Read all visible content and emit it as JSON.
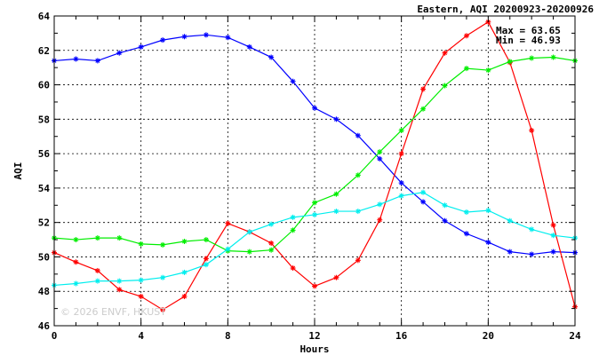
{
  "chart_data": {
    "type": "line",
    "title": "Eastern, AQI 20200923-20200926",
    "xlabel": "Hours",
    "ylabel": "AQI",
    "xlim": [
      0,
      24
    ],
    "ylim": [
      46,
      64
    ],
    "x_ticks": [
      0,
      4,
      8,
      12,
      16,
      20,
      24
    ],
    "y_ticks": [
      46,
      48,
      50,
      52,
      54,
      56,
      58,
      60,
      62,
      64
    ],
    "grid": true,
    "stats": {
      "max_label": "Max = 63.65",
      "min_label": "Min = 46.93"
    },
    "watermark": "© 2026 ENVF, HKUST",
    "x": [
      0,
      1,
      2,
      3,
      4,
      5,
      6,
      7,
      8,
      9,
      10,
      11,
      12,
      13,
      14,
      15,
      16,
      17,
      18,
      19,
      20,
      21,
      22,
      23,
      24
    ],
    "series": [
      {
        "color": "#0000ff",
        "values": [
          61.4,
          61.5,
          61.4,
          61.85,
          62.2,
          62.6,
          62.8,
          62.9,
          62.75,
          62.2,
          61.6,
          60.2,
          58.65,
          58.0,
          57.05,
          55.7,
          54.3,
          53.2,
          52.1,
          51.35,
          50.85,
          50.3,
          50.15,
          50.3,
          50.25
        ]
      },
      {
        "color": "#ff0000",
        "values": [
          50.25,
          49.7,
          49.2,
          48.1,
          47.7,
          46.93,
          47.7,
          49.9,
          51.95,
          51.45,
          50.8,
          49.35,
          48.3,
          48.8,
          49.8,
          52.15,
          56.0,
          59.75,
          61.85,
          62.85,
          63.65,
          61.3,
          57.35,
          51.85,
          47.1
        ]
      },
      {
        "color": "#00ee00",
        "values": [
          51.1,
          51.0,
          51.1,
          51.1,
          50.75,
          50.7,
          50.9,
          51.0,
          50.35,
          50.3,
          50.4,
          51.55,
          53.15,
          53.65,
          54.75,
          56.1,
          57.35,
          58.6,
          59.95,
          60.95,
          60.85,
          61.35,
          61.55,
          61.6,
          61.4
        ]
      },
      {
        "color": "#00eeee",
        "values": [
          48.35,
          48.45,
          48.6,
          48.6,
          48.65,
          48.8,
          49.1,
          49.55,
          50.45,
          51.45,
          51.9,
          52.3,
          52.45,
          52.65,
          52.65,
          53.05,
          53.55,
          53.75,
          53.0,
          52.6,
          52.7,
          52.1,
          51.6,
          51.25,
          51.1
        ]
      }
    ]
  }
}
